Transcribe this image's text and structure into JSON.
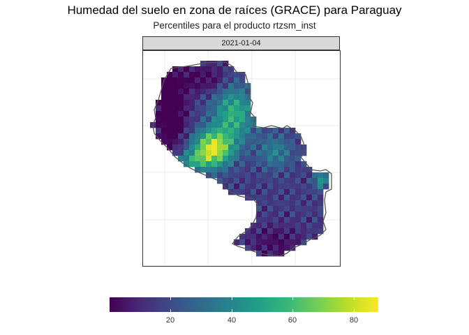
{
  "title": "Humedad del suelo en zona de raíces (GRACE) para Paraguay",
  "subtitle": "Percentiles para el producto rtzsm_inst",
  "panel": {
    "date": "2021-01-04"
  },
  "colorbar": {
    "palette": "viridis",
    "colors": [
      "#440154",
      "#482878",
      "#3e4989",
      "#31688e",
      "#26828e",
      "#1f9e89",
      "#35b779",
      "#6ece58",
      "#b5de2b",
      "#fde725"
    ],
    "min": 0,
    "max": 88,
    "ticks": [
      {
        "value": 20,
        "label": "20"
      },
      {
        "value": 40,
        "label": "40"
      },
      {
        "value": 60,
        "label": "60"
      },
      {
        "value": 80,
        "label": "80"
      }
    ]
  },
  "map": {
    "region": "Paraguay",
    "border_color": "#555555",
    "grid_color": "#ebebeb"
  }
}
